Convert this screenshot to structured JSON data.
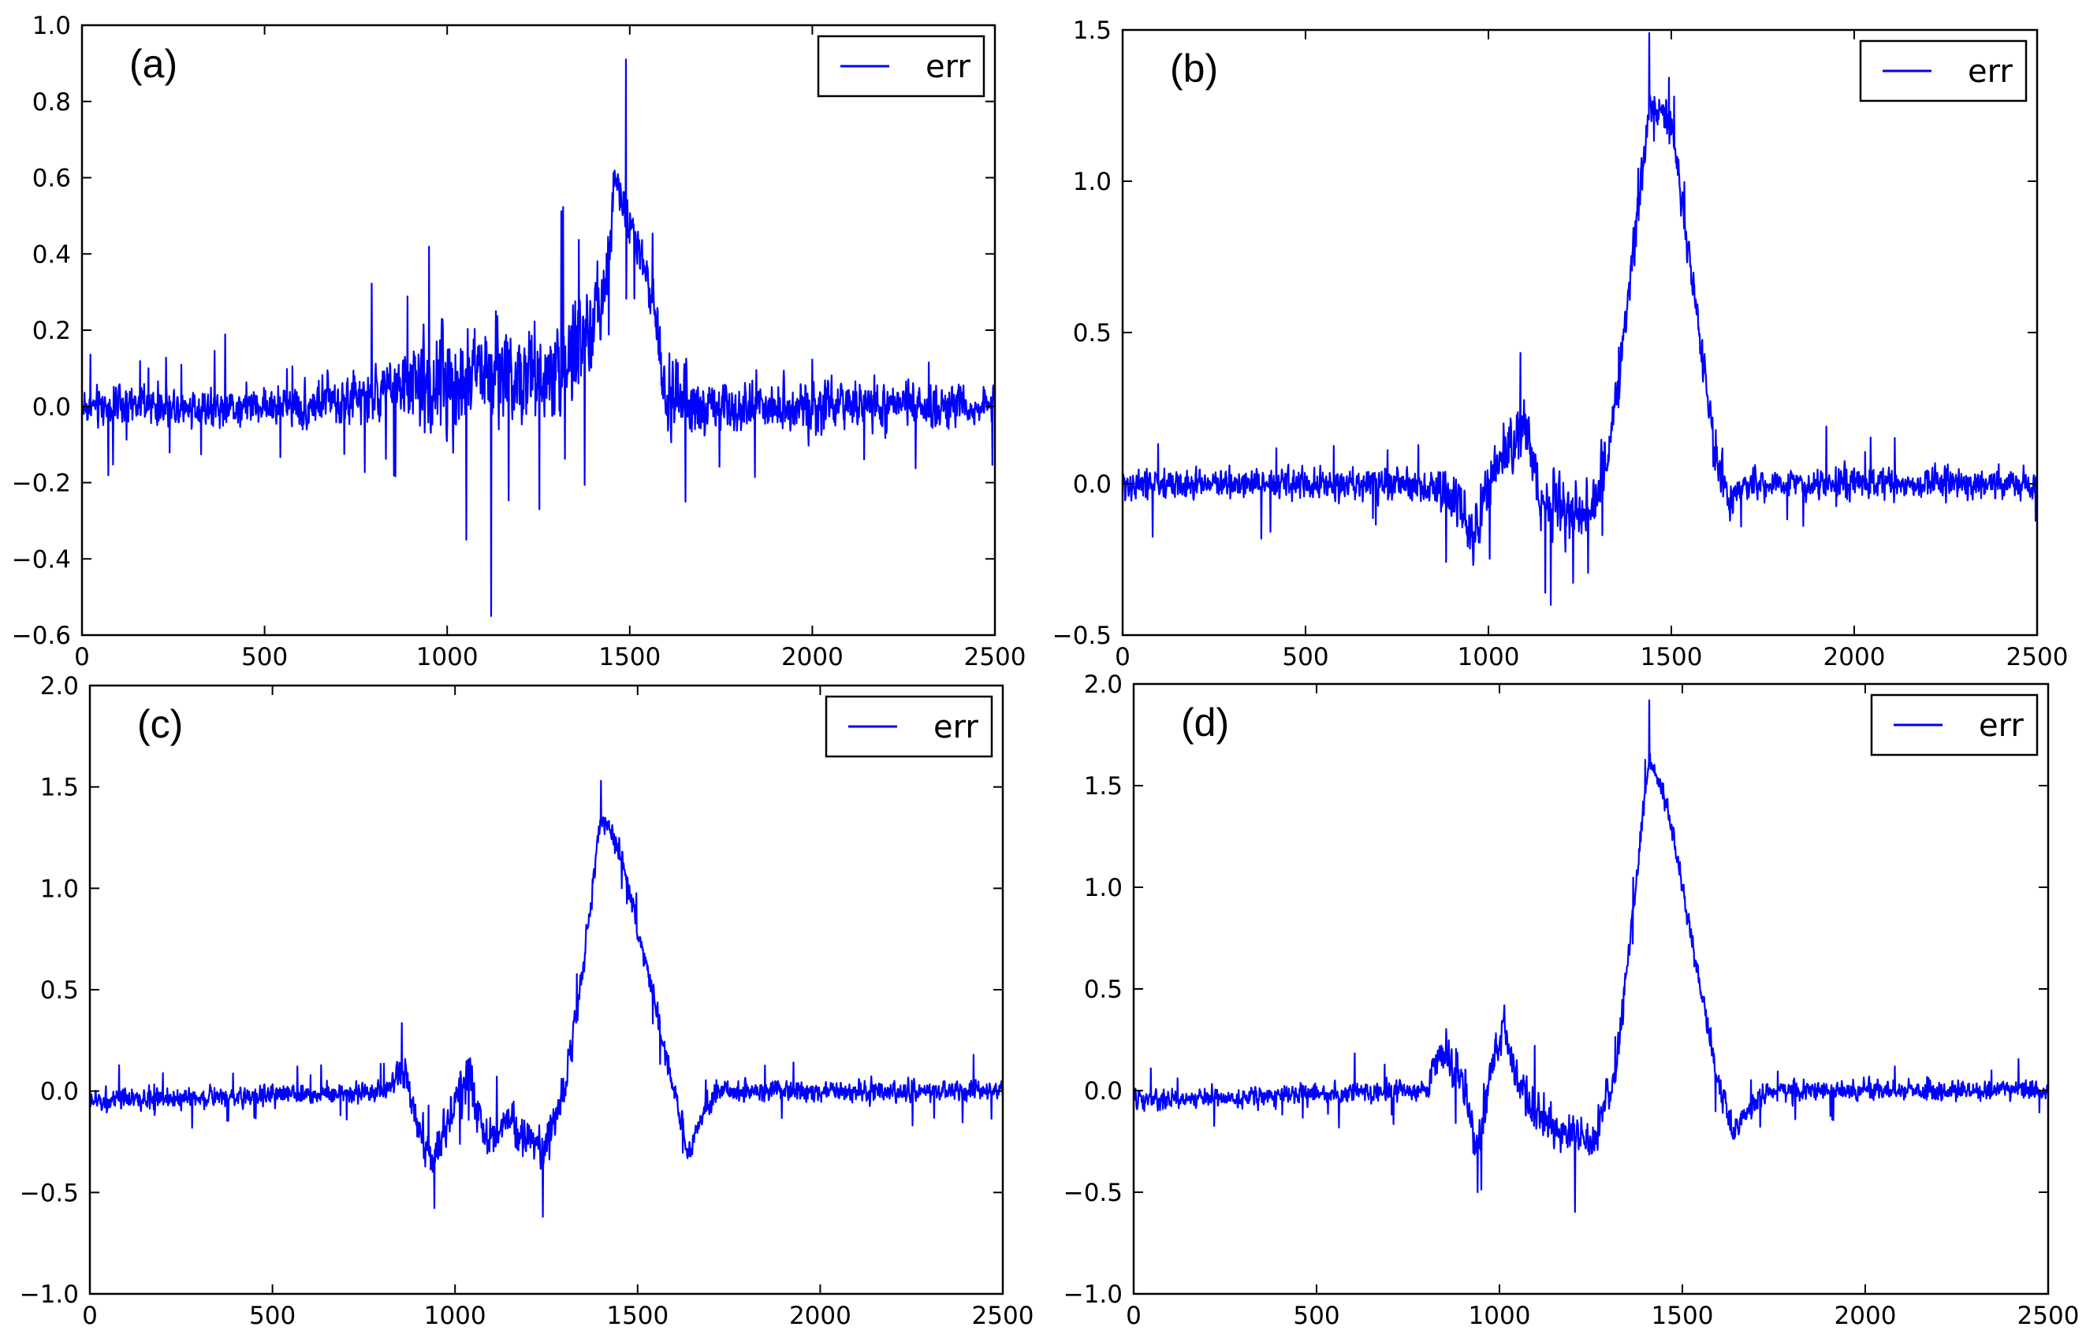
{
  "figure": {
    "background": "#ffffff",
    "line_color": "#0000ff",
    "axis_color": "#000000"
  },
  "chart_data": [
    {
      "type": "line",
      "panel_label": "(a)",
      "series": [
        {
          "name": "err"
        }
      ],
      "xlim": [
        0,
        2500
      ],
      "ylim": [
        -0.6,
        1.0
      ],
      "xticks": [
        0,
        500,
        1000,
        1500,
        2000,
        2500
      ],
      "yticks": [
        -0.6,
        -0.4,
        -0.2,
        0.0,
        0.2,
        0.4,
        0.6,
        0.8,
        1.0
      ],
      "xtick_labels": [
        "0",
        "500",
        "1000",
        "1500",
        "2000",
        "2500"
      ],
      "ytick_labels": [
        "−0.6",
        "−0.4",
        "−0.2",
        "0.0",
        "0.2",
        "0.4",
        "0.6",
        "0.8",
        "1.0"
      ],
      "legend_position": "upper right",
      "grid": false,
      "n_points": 2500,
      "profile": {
        "points": [
          [
            0,
            0
          ],
          [
            600,
            0
          ],
          [
            900,
            0.05
          ],
          [
            1100,
            0.08
          ],
          [
            1300,
            0.1
          ],
          [
            1420,
            0.22
          ],
          [
            1460,
            0.6
          ],
          [
            1490,
            0.52
          ],
          [
            1560,
            0.3
          ],
          [
            1600,
            0
          ],
          [
            2500,
            0
          ]
        ],
        "noise": [
          [
            0,
            0.1
          ],
          [
            580,
            0.1
          ],
          [
            620,
            0.14
          ],
          [
            880,
            0.15
          ],
          [
            920,
            0.28
          ],
          [
            1400,
            0.28
          ],
          [
            1460,
            0.12
          ],
          [
            1560,
            0.14
          ],
          [
            1620,
            0.2
          ],
          [
            1800,
            0.14
          ],
          [
            2500,
            0.11
          ]
        ]
      },
      "extremes": {
        "max": [
          1490,
          0.91
        ],
        "min": [
          1120,
          -0.55
        ]
      }
    },
    {
      "type": "line",
      "panel_label": "(b)",
      "series": [
        {
          "name": "err"
        }
      ],
      "xlim": [
        0,
        2500
      ],
      "ylim": [
        -0.5,
        1.5
      ],
      "xticks": [
        0,
        500,
        1000,
        1500,
        2000,
        2500
      ],
      "yticks": [
        -0.5,
        0.0,
        0.5,
        1.0,
        1.5
      ],
      "xtick_labels": [
        "0",
        "500",
        "1000",
        "1500",
        "2000",
        "2500"
      ],
      "ytick_labels": [
        "−0.5",
        "0.0",
        "0.5",
        "1.0",
        "1.5"
      ],
      "legend_position": "upper right",
      "grid": false,
      "n_points": 2500,
      "profile": {
        "points": [
          [
            0,
            0
          ],
          [
            820,
            0
          ],
          [
            900,
            -0.05
          ],
          [
            960,
            -0.15
          ],
          [
            1040,
            0.1
          ],
          [
            1100,
            0.2
          ],
          [
            1140,
            -0.05
          ],
          [
            1280,
            -0.1
          ],
          [
            1330,
            0.1
          ],
          [
            1380,
            0.6
          ],
          [
            1440,
            1.25
          ],
          [
            1500,
            1.2
          ],
          [
            1560,
            0.65
          ],
          [
            1620,
            0.1
          ],
          [
            1660,
            -0.05
          ],
          [
            1700,
            0
          ],
          [
            2500,
            0
          ]
        ],
        "noise": [
          [
            0,
            0.1
          ],
          [
            850,
            0.1
          ],
          [
            900,
            0.2
          ],
          [
            1300,
            0.2
          ],
          [
            1380,
            0.12
          ],
          [
            1550,
            0.12
          ],
          [
            1620,
            0.15
          ],
          [
            1700,
            0.1
          ],
          [
            2500,
            0.1
          ]
        ]
      },
      "extremes": {
        "max": [
          1440,
          1.49
        ],
        "min": [
          1170,
          -0.4
        ]
      }
    },
    {
      "type": "line",
      "panel_label": "(c)",
      "series": [
        {
          "name": "err"
        }
      ],
      "xlim": [
        0,
        2500
      ],
      "ylim": [
        -1.0,
        2.0
      ],
      "xticks": [
        0,
        500,
        1000,
        1500,
        2000,
        2500
      ],
      "yticks": [
        -1.0,
        -0.5,
        0.0,
        0.5,
        1.0,
        1.5,
        2.0
      ],
      "xtick_labels": [
        "0",
        "500",
        "1000",
        "1500",
        "2000",
        "2500"
      ],
      "ytick_labels": [
        "−1.0",
        "−0.5",
        "0.0",
        "0.5",
        "1.0",
        "1.5",
        "2.0"
      ],
      "legend_position": "upper right",
      "grid": false,
      "n_points": 2500,
      "profile": {
        "points": [
          [
            0,
            -0.05
          ],
          [
            820,
            0
          ],
          [
            860,
            0.1
          ],
          [
            900,
            -0.2
          ],
          [
            940,
            -0.35
          ],
          [
            990,
            -0.1
          ],
          [
            1040,
            0.1
          ],
          [
            1080,
            -0.25
          ],
          [
            1150,
            -0.15
          ],
          [
            1240,
            -0.3
          ],
          [
            1300,
            0
          ],
          [
            1350,
            0.6
          ],
          [
            1400,
            1.35
          ],
          [
            1450,
            1.2
          ],
          [
            1520,
            0.65
          ],
          [
            1580,
            0.15
          ],
          [
            1640,
            -0.3
          ],
          [
            1680,
            -0.1
          ],
          [
            1720,
            0
          ],
          [
            2500,
            0
          ]
        ],
        "noise": [
          [
            0,
            0.1
          ],
          [
            820,
            0.1
          ],
          [
            850,
            0.2
          ],
          [
            1300,
            0.2
          ],
          [
            1350,
            0.12
          ],
          [
            1550,
            0.12
          ],
          [
            1620,
            0.15
          ],
          [
            1720,
            0.1
          ],
          [
            2500,
            0.1
          ]
        ]
      },
      "extremes": {
        "max": [
          1400,
          1.53
        ],
        "min": [
          1240,
          -0.62
        ]
      }
    },
    {
      "type": "line",
      "panel_label": "(d)",
      "series": [
        {
          "name": "err"
        }
      ],
      "xlim": [
        0,
        2500
      ],
      "ylim": [
        -1.0,
        2.0
      ],
      "xticks": [
        0,
        500,
        1000,
        1500,
        2000,
        2500
      ],
      "yticks": [
        -1.0,
        -0.5,
        0.0,
        0.5,
        1.0,
        1.5,
        2.0
      ],
      "xtick_labels": [
        "0",
        "500",
        "1000",
        "1500",
        "2000",
        "2500"
      ],
      "ytick_labels": [
        "−1.0",
        "−0.5",
        "0.0",
        "0.5",
        "1.0",
        "1.5",
        "2.0"
      ],
      "legend_position": "upper right",
      "grid": false,
      "n_points": 2500,
      "profile": {
        "points": [
          [
            0,
            -0.05
          ],
          [
            800,
            0
          ],
          [
            840,
            0.2
          ],
          [
            900,
            0.05
          ],
          [
            940,
            -0.3
          ],
          [
            980,
            0.15
          ],
          [
            1010,
            0.3
          ],
          [
            1060,
            0
          ],
          [
            1150,
            -0.2
          ],
          [
            1260,
            -0.25
          ],
          [
            1320,
            0.1
          ],
          [
            1360,
            0.8
          ],
          [
            1410,
            1.65
          ],
          [
            1460,
            1.4
          ],
          [
            1540,
            0.6
          ],
          [
            1590,
            0.1
          ],
          [
            1640,
            -0.2
          ],
          [
            1700,
            -0.05
          ],
          [
            1750,
            0
          ],
          [
            2500,
            0
          ]
        ],
        "noise": [
          [
            0,
            0.1
          ],
          [
            800,
            0.1
          ],
          [
            840,
            0.2
          ],
          [
            1300,
            0.2
          ],
          [
            1360,
            0.12
          ],
          [
            1550,
            0.12
          ],
          [
            1620,
            0.15
          ],
          [
            1750,
            0.1
          ],
          [
            2500,
            0.1
          ]
        ]
      },
      "extremes": {
        "max": [
          1410,
          1.92
        ],
        "min": [
          940,
          -0.5
        ]
      }
    }
  ]
}
